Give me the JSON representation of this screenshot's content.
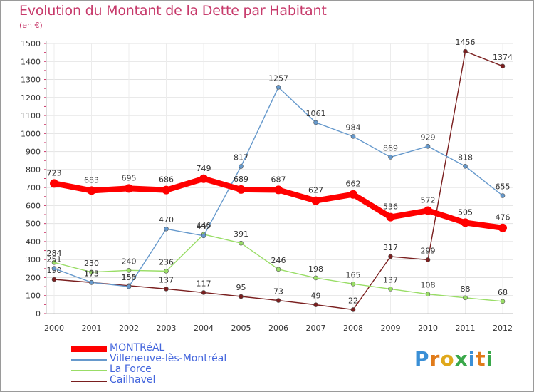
{
  "title": "Evolution du Montant de la Dette par Habitant",
  "subtitle": "(en €)",
  "brand": [
    "P",
    "r",
    "o",
    "x",
    "i",
    "t",
    "i"
  ],
  "chart_data": {
    "type": "line",
    "x": [
      "2000",
      "2001",
      "2002",
      "2003",
      "2004",
      "2005",
      "2006",
      "2007",
      "2008",
      "2009",
      "2010",
      "2011",
      "2012"
    ],
    "ylim": [
      0,
      1500
    ],
    "yticks": [
      0,
      100,
      200,
      300,
      400,
      500,
      600,
      700,
      800,
      900,
      1000,
      1100,
      1200,
      1300,
      1400,
      1500
    ],
    "grid": true,
    "legend_position": "bottom-left",
    "series": [
      {
        "name": "MONTRéAL",
        "color": "#ff0000",
        "values": [
          723,
          683,
          695,
          686,
          749,
          689,
          687,
          627,
          662,
          536,
          572,
          505,
          476
        ]
      },
      {
        "name": "Villeneuve-lès-Montréal",
        "color": "#6699cc",
        "values": [
          251,
          173,
          150,
          470,
          432,
          817,
          1257,
          1061,
          984,
          869,
          929,
          818,
          655
        ]
      },
      {
        "name": "La Force",
        "color": "#99dd66",
        "values": [
          284,
          230,
          240,
          236,
          440,
          391,
          246,
          198,
          165,
          137,
          108,
          88,
          68
        ]
      },
      {
        "name": "Cailhavel",
        "color": "#7a1f1f",
        "values": [
          190,
          173,
          155,
          137,
          117,
          95,
          73,
          49,
          22,
          317,
          299,
          1456,
          1374
        ]
      }
    ]
  }
}
